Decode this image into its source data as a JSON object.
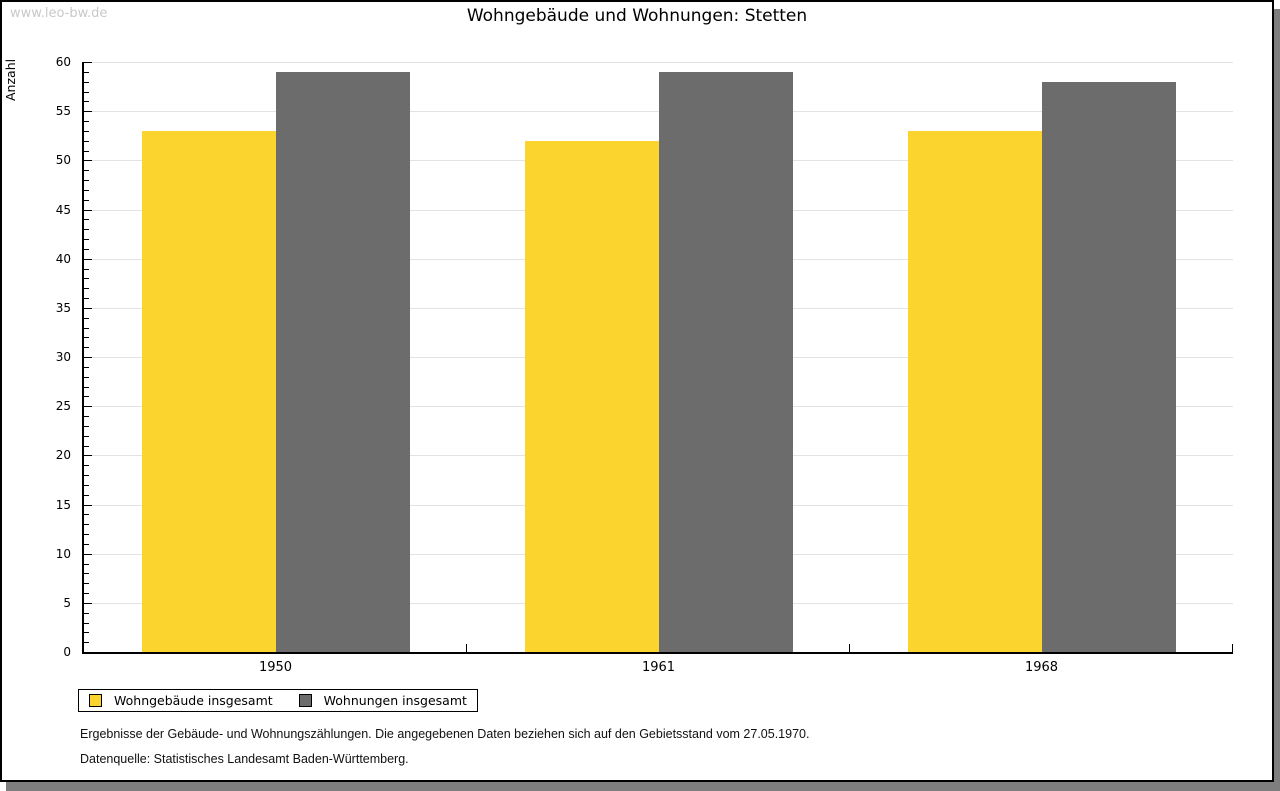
{
  "watermark": "www.leo-bw.de",
  "title": "Wohngebäude und Wohnungen: Stetten",
  "chart_data": {
    "type": "bar",
    "title": "Wohngebäude und Wohnungen: Stetten",
    "categories": [
      "1950",
      "1961",
      "1968"
    ],
    "series": [
      {
        "name": "Wohngebäude insgesamt",
        "color": "#fcd42e",
        "values": [
          53,
          52,
          53
        ]
      },
      {
        "name": "Wohnungen insgesamt",
        "color": "#6c6c6c",
        "values": [
          59,
          59,
          58
        ]
      }
    ],
    "xlabel": "",
    "ylabel": "Anzahl",
    "ylim": [
      0,
      60
    ],
    "ytick_step": 5,
    "minor_tick_step": 1,
    "grid": true,
    "legend_position": "bottom-left",
    "gridline_color": "#e3e3e3"
  },
  "footnotes": {
    "line1": "Ergebnisse der Gebäude- und Wohnungszählungen. Die angegebenen Daten beziehen sich auf den Gebietsstand vom 27.05.1970.",
    "line2": "Datenquelle: Statistisches Landesamt Baden-Württemberg."
  },
  "colors": {
    "frame_border": "#000000",
    "frame_shadow": "#7e7e7e",
    "watermark": "#c9c9c9",
    "axis": "#000000"
  }
}
